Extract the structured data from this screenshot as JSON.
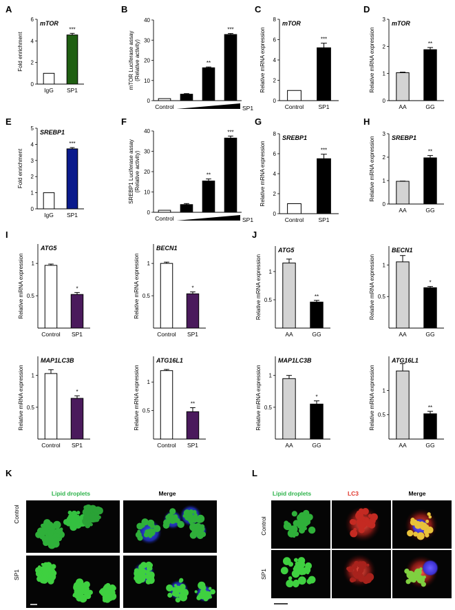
{
  "chart_data": [
    {
      "panel": "A",
      "type": "bar",
      "title": "mTOR",
      "ylabel": "Fold enrichment",
      "ylim": [
        0,
        6
      ],
      "yticks": [
        0,
        2,
        4,
        6
      ],
      "categories": [
        "IgG",
        "SP1"
      ],
      "values": [
        1.0,
        4.55
      ],
      "errors": [
        0,
        0.15
      ],
      "stars": [
        "",
        "***"
      ],
      "colors": [
        "#ffffff",
        "#1f5f12"
      ]
    },
    {
      "panel": "B",
      "type": "bar",
      "title": "",
      "ylabel": "mTOR  Luciferase assay",
      "ylabel2": "(Relative activity)",
      "ylim": [
        0,
        40
      ],
      "yticks": [
        0,
        10,
        20,
        30,
        40
      ],
      "categories": [
        "Control",
        "",
        "",
        ""
      ],
      "values": [
        1.0,
        3.2,
        16.3,
        32.8
      ],
      "errors": [
        0,
        0.3,
        0.4,
        0.5
      ],
      "stars": [
        "",
        "",
        "**",
        "***"
      ],
      "colors": [
        "#ffffff",
        "#000000",
        "#000000",
        "#000000"
      ],
      "gradient_label": "SP1"
    },
    {
      "panel": "C",
      "type": "bar",
      "title": "mTOR",
      "ylabel": "Relative mRNA expression",
      "ylim": [
        0,
        8
      ],
      "yticks": [
        0,
        2,
        4,
        6,
        8
      ],
      "categories": [
        "Control",
        "SP1"
      ],
      "values": [
        1.0,
        5.2
      ],
      "errors": [
        0,
        0.45
      ],
      "stars": [
        "",
        "***"
      ],
      "colors": [
        "#ffffff",
        "#000000"
      ]
    },
    {
      "panel": "D",
      "type": "bar",
      "title": "mTOR",
      "ylabel": "Relative mRNA expression",
      "ylim": [
        0,
        3
      ],
      "yticks": [
        0,
        1,
        2,
        3
      ],
      "categories": [
        "AA",
        "GG"
      ],
      "values": [
        1.03,
        1.88
      ],
      "errors": [
        0.02,
        0.08
      ],
      "stars": [
        "",
        "**"
      ],
      "colors": [
        "#d3d3d3",
        "#000000"
      ]
    },
    {
      "panel": "E",
      "type": "bar",
      "title": "SREBP1",
      "ylabel": "Fold enrichment",
      "ylim": [
        0,
        5
      ],
      "yticks": [
        0,
        1,
        2,
        3,
        4,
        5
      ],
      "categories": [
        "IgG",
        "SP1"
      ],
      "values": [
        1.0,
        3.72
      ],
      "errors": [
        0,
        0.08
      ],
      "stars": [
        "",
        "***"
      ],
      "colors": [
        "#ffffff",
        "#0a1a8c"
      ]
    },
    {
      "panel": "F",
      "type": "bar",
      "title": "",
      "ylabel": "SREBP1 Luciferase assay",
      "ylabel2": "(Relative activity)",
      "ylim": [
        0,
        40
      ],
      "yticks": [
        0,
        10,
        20,
        30,
        40
      ],
      "categories": [
        "Control",
        "",
        "",
        ""
      ],
      "values": [
        1.0,
        3.8,
        15.4,
        36.5
      ],
      "errors": [
        0,
        0.5,
        1.0,
        1.0
      ],
      "stars": [
        "",
        "",
        "**",
        "***"
      ],
      "colors": [
        "#ffffff",
        "#000000",
        "#000000",
        "#000000"
      ],
      "gradient_label": "SP1"
    },
    {
      "panel": "G",
      "type": "bar",
      "title": "SREBP1",
      "ylabel": "Relative mRNA expression",
      "ylim": [
        0,
        8
      ],
      "yticks": [
        0,
        2,
        4,
        6,
        8
      ],
      "categories": [
        "Control",
        "SP1"
      ],
      "values": [
        1.0,
        5.5
      ],
      "errors": [
        0,
        0.45
      ],
      "stars": [
        "",
        "***"
      ],
      "colors": [
        "#ffffff",
        "#000000"
      ]
    },
    {
      "panel": "H",
      "type": "bar",
      "title": "SREBP1",
      "ylabel": "Relative mRNA expression",
      "ylim": [
        0,
        3
      ],
      "yticks": [
        0,
        1,
        2,
        3
      ],
      "categories": [
        "AA",
        "GG"
      ],
      "values": [
        0.97,
        1.97
      ],
      "errors": [
        0.01,
        0.1
      ],
      "stars": [
        "",
        "**"
      ],
      "colors": [
        "#d3d3d3",
        "#000000"
      ]
    },
    {
      "panel": "I",
      "type": "bar",
      "title": "ATG5",
      "ylabel": "Relative mRNA expression",
      "ylim": [
        0,
        1.3
      ],
      "yticks": [
        0.5,
        1
      ],
      "ytick_labels": [
        "0.5",
        "1"
      ],
      "categories": [
        "Control",
        "SP1"
      ],
      "values": [
        0.97,
        0.52
      ],
      "errors": [
        0.02,
        0.03
      ],
      "stars": [
        "",
        "*"
      ],
      "colors": [
        "#ffffff",
        "#4a1a5c"
      ]
    },
    {
      "panel": "I",
      "type": "bar",
      "title": "BECN1",
      "ylabel": "Relative mRNA expression",
      "ylim": [
        0,
        1.3
      ],
      "yticks": [
        0.5,
        1
      ],
      "ytick_labels": [
        "0.5",
        "1"
      ],
      "categories": [
        "Control",
        "SP1"
      ],
      "values": [
        1.0,
        0.53
      ],
      "errors": [
        0.02,
        0.03
      ],
      "stars": [
        "",
        "*"
      ],
      "colors": [
        "#ffffff",
        "#4a1a5c"
      ]
    },
    {
      "panel": "J",
      "type": "bar",
      "title": "ATG5",
      "ylabel": "Relative mRNA expression",
      "ylim": [
        0,
        1.45
      ],
      "yticks": [
        0.5,
        1
      ],
      "ytick_labels": [
        "0.5",
        "1"
      ],
      "categories": [
        "AA",
        "GG"
      ],
      "values": [
        1.15,
        0.46
      ],
      "errors": [
        0.07,
        0.03
      ],
      "stars": [
        "",
        "**"
      ],
      "colors": [
        "#d3d3d3",
        "#000000"
      ]
    },
    {
      "panel": "J",
      "type": "bar",
      "title": "BECN1",
      "ylabel": "Relative mRNA expression",
      "ylim": [
        0,
        1.3
      ],
      "yticks": [
        0.5,
        1
      ],
      "ytick_labels": [
        "0.5",
        "1"
      ],
      "categories": [
        "AA",
        "GG"
      ],
      "values": [
        1.05,
        0.64
      ],
      "errors": [
        0.1,
        0.02
      ],
      "stars": [
        "",
        "*"
      ],
      "colors": [
        "#d3d3d3",
        "#000000"
      ]
    },
    {
      "panel": "I",
      "type": "bar",
      "title": "MAP1LC3B",
      "ylabel": "Relative mRNA expression",
      "ylim": [
        0,
        1.3
      ],
      "yticks": [
        0.5,
        1
      ],
      "ytick_labels": [
        "0.5",
        "1"
      ],
      "categories": [
        "Control",
        "SP1"
      ],
      "values": [
        1.03,
        0.64
      ],
      "errors": [
        0.06,
        0.04
      ],
      "stars": [
        "",
        "*"
      ],
      "colors": [
        "#ffffff",
        "#4a1a5c"
      ]
    },
    {
      "panel": "I",
      "type": "bar",
      "title": "ATG16L1",
      "ylabel": "Relative mRNA expression",
      "ylim": [
        0,
        1.45
      ],
      "yticks": [
        0.5,
        1
      ],
      "ytick_labels": [
        "0.5",
        "1"
      ],
      "categories": [
        "Control",
        "SP1"
      ],
      "values": [
        1.2,
        0.48
      ],
      "errors": [
        0.02,
        0.07
      ],
      "stars": [
        "",
        "**"
      ],
      "colors": [
        "#ffffff",
        "#4a1a5c"
      ]
    },
    {
      "panel": "J",
      "type": "bar",
      "title": "MAP1LC3B",
      "ylabel": "Relative mRNA expression",
      "ylim": [
        0,
        1.3
      ],
      "yticks": [
        0.5,
        1
      ],
      "ytick_labels": [
        "0.5",
        "1"
      ],
      "categories": [
        "AA",
        "GG"
      ],
      "values": [
        0.95,
        0.55
      ],
      "errors": [
        0.05,
        0.05
      ],
      "stars": [
        "",
        "*"
      ],
      "colors": [
        "#d3d3d3",
        "#000000"
      ]
    },
    {
      "panel": "J",
      "type": "bar",
      "title": "ATG16L1",
      "ylabel": "Relative mRNA expression",
      "ylim": [
        0,
        1.7
      ],
      "yticks": [
        0.5,
        1
      ],
      "ytick_labels": [
        "0.5",
        "1"
      ],
      "categories": [
        "AA",
        "GG"
      ],
      "values": [
        1.4,
        0.52
      ],
      "errors": [
        0.15,
        0.05
      ],
      "stars": [
        "",
        "**"
      ],
      "colors": [
        "#d3d3d3",
        "#000000"
      ]
    }
  ],
  "panel_letters": [
    "A",
    "B",
    "C",
    "D",
    "E",
    "F",
    "G",
    "H",
    "I",
    "J",
    "K",
    "L"
  ],
  "micrographs": {
    "K": {
      "columns": [
        "Lipid droplets",
        "Merge"
      ],
      "rows": [
        "Control",
        "SP1"
      ]
    },
    "L": {
      "columns": [
        "Lipid droplets",
        "LC3",
        "Merge"
      ],
      "rows": [
        "Control",
        "SP1"
      ]
    }
  },
  "colors": {
    "lipid": "#2db34a",
    "lc3": "#e0352b",
    "bar_purple": "#4a1a5c",
    "bar_green": "#1f5f12",
    "bar_blue": "#0a1a8c"
  }
}
